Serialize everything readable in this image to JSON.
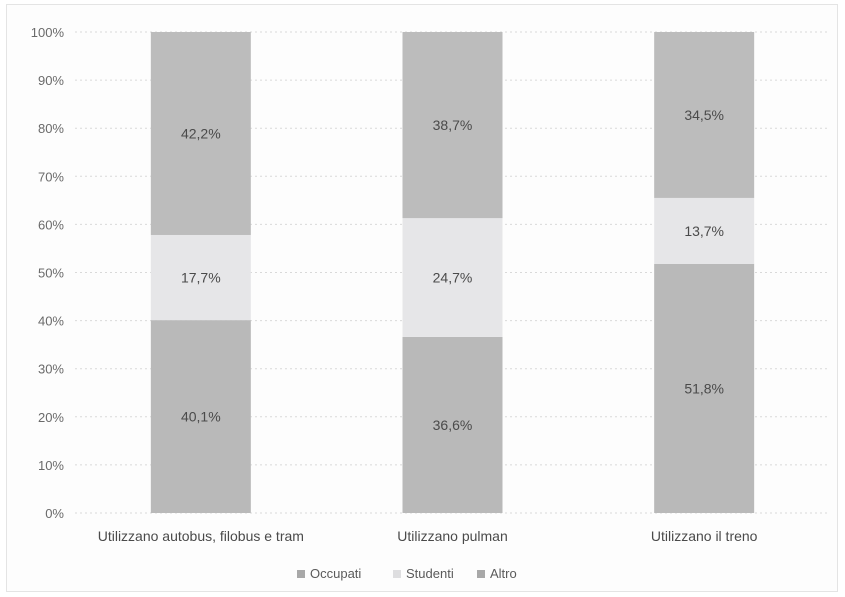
{
  "chart_data": {
    "type": "bar",
    "stacked": true,
    "percent_stacked": true,
    "categories": [
      "Utilizzano autobus, filobus e tram",
      "Utilizzano pulman",
      "Utilizzano il treno"
    ],
    "series": [
      {
        "name": "Occupati",
        "values": [
          40.1,
          36.6,
          51.8
        ],
        "labels": [
          "40,1%",
          "36,6%",
          "51,8%"
        ],
        "color": "#b9b9b9"
      },
      {
        "name": "Studenti",
        "values": [
          17.7,
          24.7,
          13.7
        ],
        "labels": [
          "17,7%",
          "24,7%",
          "13,7%"
        ],
        "color": "#e6e6e8"
      },
      {
        "name": "Altro",
        "values": [
          42.2,
          38.7,
          34.5
        ],
        "labels": [
          "42,2%",
          "38,7%",
          "34,5%"
        ],
        "color": "#bcbcbc"
      }
    ],
    "ylim": [
      0,
      100
    ],
    "yticks": [
      0,
      10,
      20,
      30,
      40,
      50,
      60,
      70,
      80,
      90,
      100
    ],
    "ytick_labels": [
      "0%",
      "10%",
      "20%",
      "30%",
      "40%",
      "50%",
      "60%",
      "70%",
      "80%",
      "90%",
      "100%"
    ],
    "title": "",
    "xlabel": "",
    "ylabel": "",
    "grid": true,
    "legend_position": "bottom"
  }
}
